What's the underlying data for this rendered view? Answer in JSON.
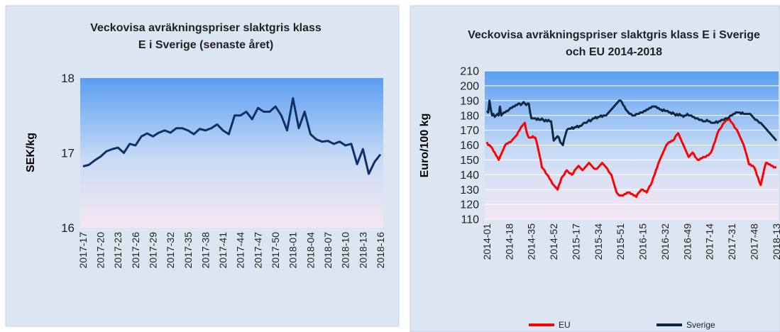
{
  "chart_data": [
    {
      "type": "line",
      "title": "Veckovisa avräkningspriser slaktgris klass E i Sverige (senaste året)",
      "y_label": "SEK/kg",
      "categories": [
        "2017-17",
        null,
        null,
        "2017-20",
        null,
        null,
        "2017-23",
        null,
        null,
        "2017-26",
        null,
        null,
        "2017-29",
        null,
        null,
        "2017-32",
        null,
        null,
        "2017-35",
        null,
        null,
        "2017-38",
        null,
        null,
        "2017-41",
        null,
        null,
        "2017-44",
        null,
        null,
        "2017-47",
        null,
        null,
        "2017-50",
        null,
        null,
        "2018-01",
        null,
        null,
        "2018-04",
        null,
        null,
        "2018-07",
        null,
        null,
        "2018-10",
        null,
        null,
        "2018-13",
        null,
        null,
        "2018-16"
      ],
      "values": [
        16.82,
        16.84,
        16.9,
        16.95,
        17.02,
        17.05,
        17.07,
        17.0,
        17.12,
        17.1,
        17.22,
        17.26,
        17.22,
        17.27,
        17.3,
        17.27,
        17.33,
        17.33,
        17.3,
        17.25,
        17.32,
        17.3,
        17.33,
        17.38,
        17.3,
        17.25,
        17.5,
        17.5,
        17.55,
        17.45,
        17.6,
        17.55,
        17.55,
        17.62,
        17.5,
        17.3,
        17.73,
        17.33,
        17.55,
        17.25,
        17.18,
        17.15,
        17.16,
        17.12,
        17.15,
        17.1,
        17.12,
        16.85,
        17.05,
        16.72,
        16.88,
        16.98
      ],
      "color": "#10306a",
      "ylim": [
        16,
        18
      ],
      "yticks": [
        16,
        17,
        18
      ],
      "grid": false
    },
    {
      "type": "line",
      "title": "Veckovisa avräkningspriser slaktgris klass E i Sverige och EU 2014-2018",
      "y_label": "Euro/100 kg",
      "categories": [
        "2014-01",
        null,
        null,
        null,
        null,
        null,
        null,
        null,
        null,
        null,
        null,
        null,
        null,
        null,
        null,
        null,
        null,
        "2014-18",
        null,
        null,
        null,
        null,
        null,
        null,
        null,
        null,
        null,
        null,
        null,
        null,
        null,
        null,
        null,
        null,
        "2014-35",
        null,
        null,
        null,
        null,
        null,
        null,
        null,
        null,
        null,
        null,
        null,
        null,
        null,
        null,
        null,
        null,
        "2014-52",
        null,
        null,
        null,
        null,
        null,
        null,
        null,
        null,
        null,
        null,
        null,
        null,
        null,
        null,
        null,
        null,
        "2015-17",
        null,
        null,
        null,
        null,
        null,
        null,
        null,
        null,
        null,
        null,
        null,
        null,
        null,
        null,
        null,
        null,
        "2015-34",
        null,
        null,
        null,
        null,
        null,
        null,
        null,
        null,
        null,
        null,
        null,
        null,
        null,
        null,
        null,
        null,
        "2015-51",
        null,
        null,
        null,
        null,
        null,
        null,
        null,
        null,
        null,
        null,
        null,
        null,
        null,
        null,
        null,
        null,
        "2016-15",
        null,
        null,
        null,
        null,
        null,
        null,
        null,
        null,
        null,
        null,
        null,
        null,
        null,
        null,
        null,
        null,
        "2016-32",
        null,
        null,
        null,
        null,
        null,
        null,
        null,
        null,
        null,
        null,
        null,
        null,
        null,
        null,
        null,
        null,
        "2016-49",
        null,
        null,
        null,
        null,
        null,
        null,
        null,
        null,
        null,
        null,
        null,
        null,
        null,
        null,
        null,
        null,
        "2017-14",
        null,
        null,
        null,
        null,
        null,
        null,
        null,
        null,
        null,
        null,
        null,
        null,
        null,
        null,
        null,
        null,
        "2017-31",
        null,
        null,
        null,
        null,
        null,
        null,
        null,
        null,
        null,
        null,
        null,
        null,
        null,
        null,
        null,
        null,
        "2017-48",
        null,
        null,
        null,
        null,
        null,
        null,
        null,
        null,
        null,
        null,
        null,
        null,
        null,
        null,
        null,
        null,
        "2018-13"
      ],
      "series": [
        {
          "name": "EU",
          "color": "#ff0000",
          "values": [
            162,
            160,
            160,
            159,
            158,
            156,
            155,
            153,
            152,
            150,
            152,
            154,
            156,
            158,
            160,
            161,
            161,
            162,
            162,
            163,
            164,
            165,
            166,
            167,
            169,
            170,
            172,
            173,
            174,
            175,
            170,
            167,
            165,
            165,
            165,
            166,
            165,
            165,
            162,
            158,
            154,
            150,
            145,
            144,
            143,
            141,
            140,
            139,
            137,
            136,
            134,
            133,
            132,
            131,
            130,
            133,
            135,
            138,
            139,
            140,
            142,
            143,
            142,
            141,
            141,
            140,
            141,
            143,
            144,
            145,
            146,
            145,
            144,
            143,
            144,
            145,
            146,
            147,
            148,
            147,
            146,
            145,
            144,
            144,
            144,
            145,
            146,
            147,
            148,
            147,
            146,
            145,
            144,
            142,
            141,
            140,
            137,
            134,
            131,
            128,
            127,
            126,
            126,
            126,
            126,
            127,
            127,
            128,
            128,
            128,
            127,
            127,
            126,
            126,
            125,
            127,
            128,
            129,
            130,
            130,
            129,
            129,
            128,
            130,
            132,
            133,
            135,
            138,
            140,
            143,
            145,
            148,
            150,
            152,
            154,
            156,
            158,
            160,
            161,
            162,
            162,
            163,
            163,
            164,
            166,
            167,
            168,
            166,
            164,
            162,
            160,
            158,
            156,
            154,
            152,
            153,
            154,
            155,
            154,
            152,
            151,
            150,
            150,
            151,
            151,
            152,
            152,
            152,
            153,
            153,
            154,
            155,
            157,
            160,
            162,
            165,
            168,
            170,
            171,
            172,
            174,
            175,
            176,
            177,
            177,
            178,
            176,
            175,
            174,
            172,
            171,
            170,
            168,
            166,
            164,
            162,
            160,
            157,
            154,
            151,
            147,
            147,
            146,
            146,
            145,
            143,
            140,
            138,
            135,
            133,
            137,
            141,
            145,
            148,
            148,
            147,
            147,
            146,
            146,
            145,
            145,
            145
          ]
        },
        {
          "name": "Sverige",
          "color": "#0e2841",
          "values": [
            183,
            182,
            190,
            184,
            180,
            181,
            179,
            180,
            181,
            180,
            186,
            180,
            181,
            182,
            182,
            183,
            183,
            184,
            185,
            185,
            186,
            186,
            187,
            187,
            188,
            188,
            187,
            188,
            189,
            188,
            187,
            188,
            188,
            182,
            178,
            178,
            178,
            178,
            177,
            178,
            177,
            177,
            178,
            177,
            176,
            177,
            176,
            177,
            176,
            176,
            170,
            163,
            164,
            165,
            166,
            165,
            162,
            161,
            160,
            164,
            167,
            170,
            171,
            171,
            171,
            172,
            171,
            172,
            172,
            173,
            172,
            173,
            173,
            174,
            175,
            175,
            175,
            176,
            177,
            176,
            177,
            178,
            178,
            179,
            178,
            179,
            179,
            180,
            179,
            180,
            180,
            180,
            181,
            182,
            183,
            184,
            185,
            186,
            187,
            188,
            189,
            190,
            190,
            189,
            187,
            186,
            184,
            183,
            182,
            181,
            181,
            180,
            180,
            180,
            181,
            181,
            181,
            182,
            182,
            182,
            183,
            183,
            184,
            184,
            185,
            185,
            186,
            186,
            186,
            186,
            185,
            185,
            184,
            184,
            183,
            184,
            183,
            183,
            183,
            182,
            182,
            181,
            182,
            181,
            180,
            181,
            180,
            181,
            180,
            180,
            179,
            180,
            180,
            181,
            180,
            180,
            180,
            179,
            179,
            178,
            178,
            178,
            177,
            177,
            177,
            176,
            176,
            176,
            177,
            176,
            176,
            175,
            175,
            175,
            175,
            176,
            175,
            176,
            176,
            177,
            177,
            177,
            178,
            178,
            178,
            179,
            180,
            180,
            181,
            181,
            182,
            182,
            182,
            182,
            181,
            182,
            181,
            181,
            181,
            181,
            181,
            181,
            180,
            179,
            178,
            177,
            177,
            176,
            175,
            175,
            174,
            173,
            172,
            171,
            170,
            169,
            168,
            167,
            166,
            165,
            164,
            163
          ]
        }
      ],
      "ylim": [
        110,
        210
      ],
      "yticks": [
        110,
        120,
        130,
        140,
        150,
        160,
        170,
        180,
        190,
        200,
        210
      ],
      "grid": true,
      "legend": "bottom"
    }
  ]
}
